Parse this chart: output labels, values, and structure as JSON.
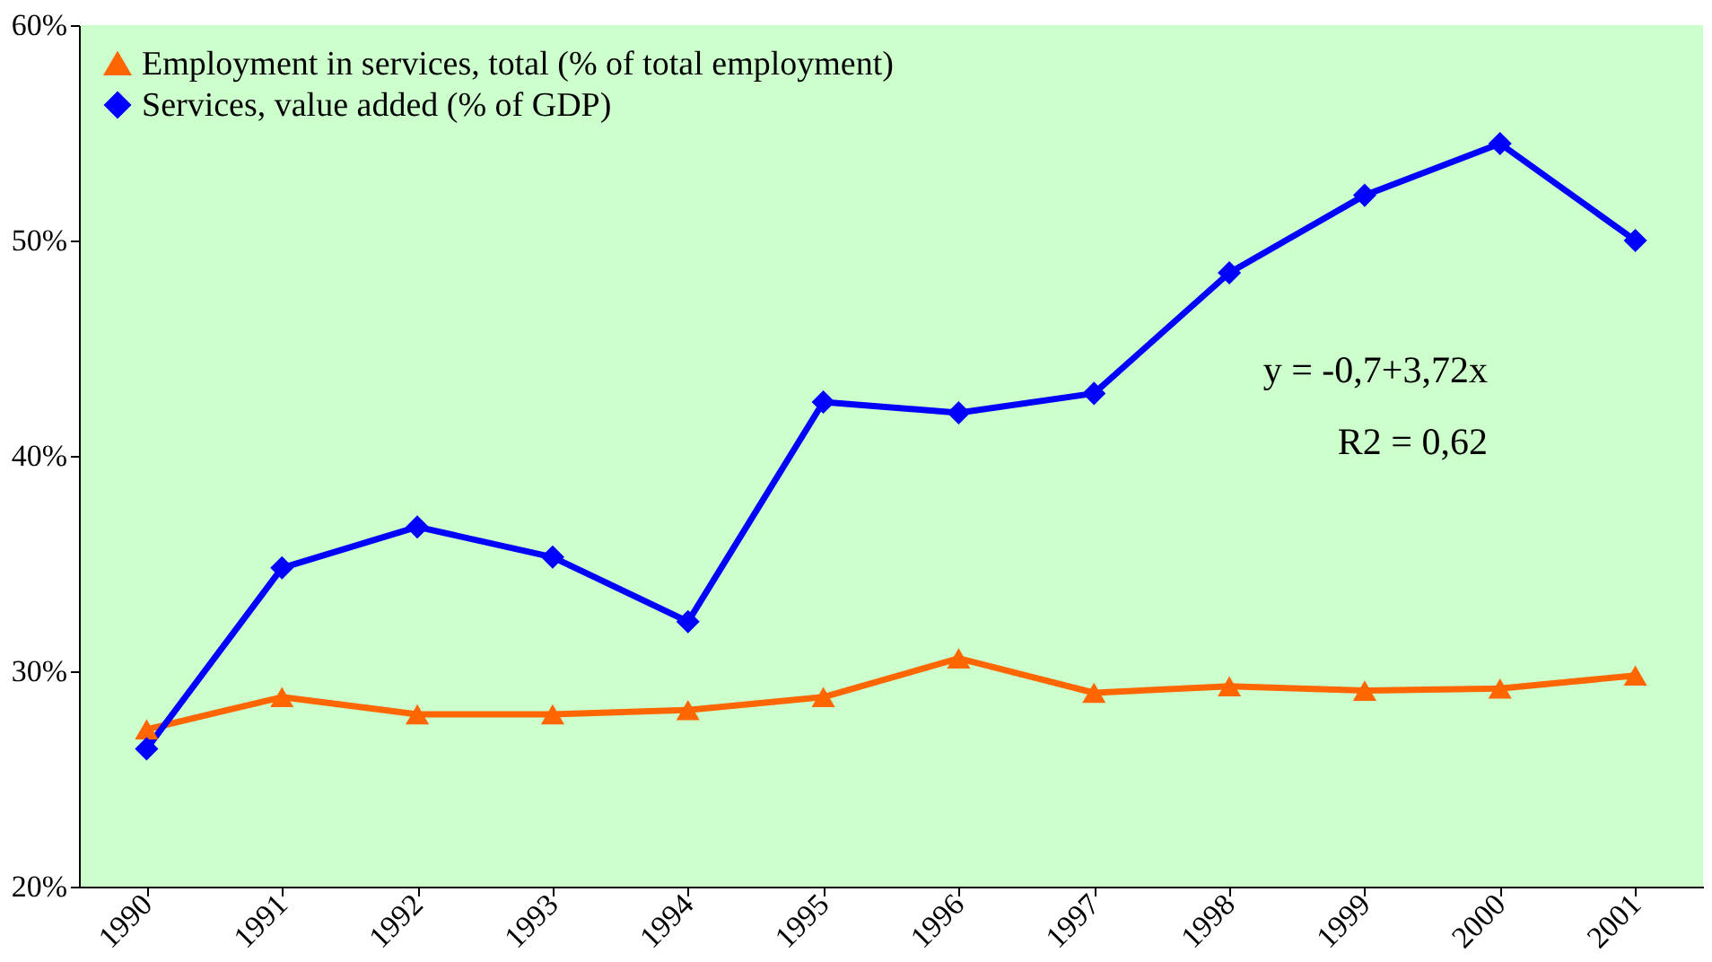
{
  "chart_data": {
    "type": "line",
    "categories": [
      "1990",
      "1991",
      "1992",
      "1993",
      "1994",
      "1995",
      "1996",
      "1997",
      "1998",
      "1999",
      "2000",
      "2001"
    ],
    "series": [
      {
        "name": "Employment in services, total (% of total employment)",
        "color": "#ff6600",
        "marker": "triangle",
        "values": [
          27.3,
          28.8,
          28.0,
          28.0,
          28.2,
          28.8,
          30.6,
          29.0,
          29.3,
          29.1,
          29.2,
          29.8
        ]
      },
      {
        "name": "Services, value added (% of GDP)",
        "color": "#0000ff",
        "marker": "diamond",
        "values": [
          26.4,
          34.8,
          36.7,
          35.3,
          32.3,
          42.5,
          42.0,
          42.9,
          48.5,
          52.1,
          54.5,
          50.0
        ]
      }
    ],
    "ylim": [
      20,
      60
    ],
    "yticks": [
      {
        "value": 20,
        "label": "20%"
      },
      {
        "value": 30,
        "label": "30%"
      },
      {
        "value": 40,
        "label": "40%"
      },
      {
        "value": 50,
        "label": "50%"
      },
      {
        "value": 60,
        "label": "60%"
      }
    ],
    "annotations": [
      "y = -0,7+3,72x",
      "R2 = 0,62"
    ],
    "legend": "top left",
    "grid": false,
    "line_style": "solid"
  }
}
